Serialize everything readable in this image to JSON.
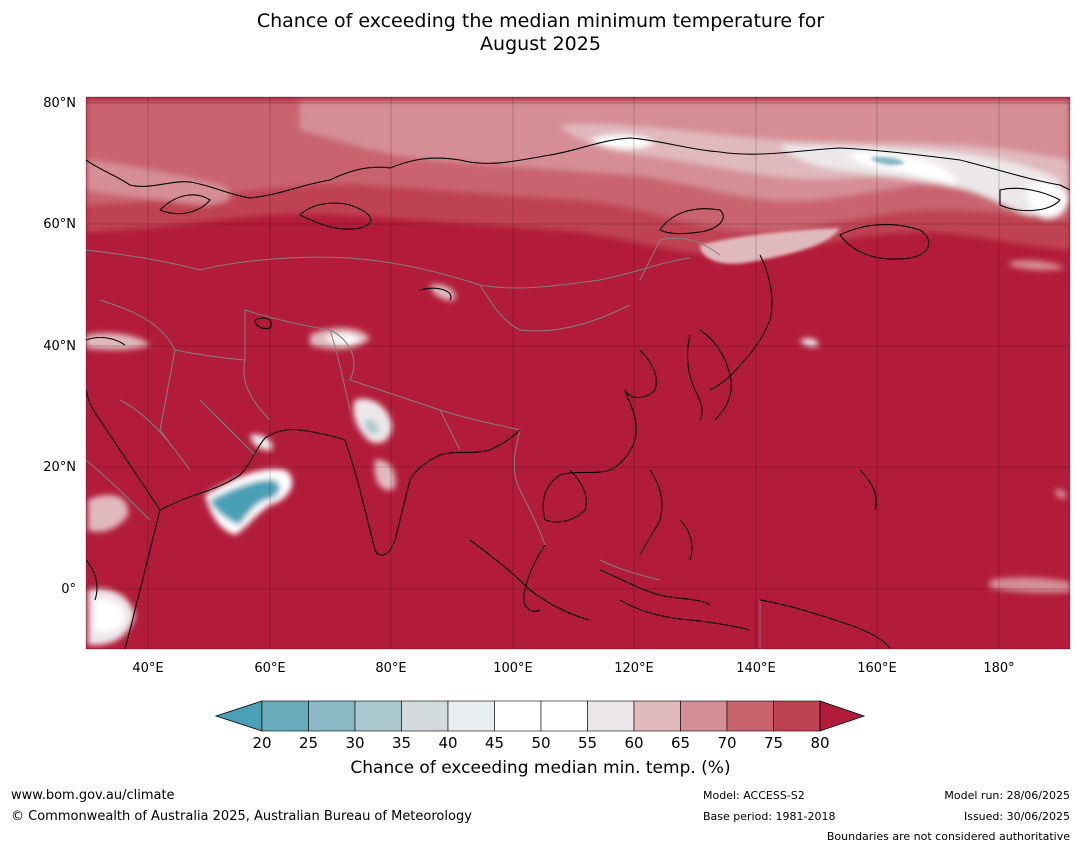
{
  "title": {
    "line1": "Chance of exceeding the median minimum temperature for",
    "line2": "August 2025"
  },
  "map": {
    "region": "Asia",
    "lat_labels": [
      "80°N",
      "60°N",
      "40°N",
      "20°N",
      "0°"
    ],
    "lon_labels": [
      "40°E",
      "60°E",
      "80°E",
      "100°E",
      "120°E",
      "140°E",
      "160°E",
      "180°"
    ],
    "colors": {
      "dominant": "#b21c3a",
      "c75_80": "#bf4252",
      "c70_75": "#c9646f",
      "c65_70": "#d58e95",
      "c60_65": "#e0b9bd",
      "c55_60": "#ece8e9",
      "c50_55": "#ffffff",
      "c20_25": "#6aabbb",
      "below20": "#4aa0b5",
      "coastline": "#000000",
      "borders": "#808080"
    }
  },
  "colorbar": {
    "ticks": [
      "20",
      "25",
      "30",
      "35",
      "40",
      "45",
      "50",
      "55",
      "60",
      "65",
      "70",
      "75",
      "80"
    ],
    "segment_colors": [
      "#6aabbb",
      "#8ab9c5",
      "#aac7cd",
      "#d2d9dc",
      "#e8eef0",
      "#ffffff",
      "#ffffff",
      "#ebe7e8",
      "#e0b9bd",
      "#d58e95",
      "#c9646f",
      "#bf4252"
    ],
    "under_color": "#4aa0b5",
    "over_color": "#b21c3a",
    "title": "Chance of exceeding median min. temp. (%)"
  },
  "footer": {
    "website": "www.bom.gov.au/climate",
    "copyright": "© Commonwealth of Australia 2025, Australian Bureau of Meteorology",
    "model": "Model: ACCESS-S2",
    "base_period": "Base period: 1981-2018",
    "model_run": "Model run: 28/06/2025",
    "issued": "Issued: 30/06/2025",
    "disclaimer": "Boundaries are not considered authoritative"
  }
}
